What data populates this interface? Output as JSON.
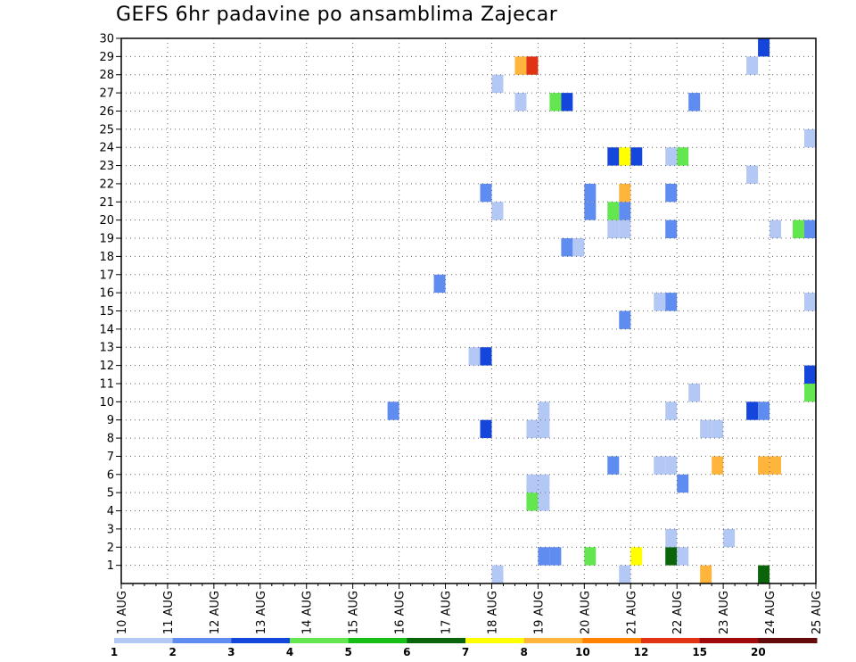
{
  "chart_data": {
    "type": "heatmap",
    "title": "GEFS 6hr padavine po ansamblima Zajecar",
    "x_tick_labels": [
      "10 AUG",
      "11 AUG",
      "12 AUG",
      "13 AUG",
      "14 AUG",
      "15 AUG",
      "16 AUG",
      "17 AUG",
      "18 AUG",
      "19 AUG",
      "20 AUG",
      "21 AUG",
      "22 AUG",
      "23 AUG",
      "24 AUG",
      "25 AUG"
    ],
    "y_tick_labels": [
      "1",
      "2",
      "3",
      "4",
      "5",
      "6",
      "7",
      "8",
      "9",
      "10",
      "11",
      "12",
      "13",
      "14",
      "15",
      "16",
      "17",
      "18",
      "19",
      "20",
      "21",
      "22",
      "23",
      "24",
      "25",
      "26",
      "27",
      "28",
      "29",
      "30"
    ],
    "xlim": [
      "10 AUG",
      "25 AUG"
    ],
    "ylim": [
      0,
      30
    ],
    "grid": true,
    "colorbar": {
      "colors": [
        "#b4c8f5",
        "#5f8cf0",
        "#1446dc",
        "#64e650",
        "#14be14",
        "#0a640a",
        "#ffff00",
        "#ffb43c",
        "#ff8200",
        "#e13214",
        "#a00a0a",
        "#640a0a"
      ],
      "labels": [
        "1",
        "2",
        "3",
        "4",
        "5",
        "6",
        "7",
        "8",
        "10",
        "12",
        "15",
        "20"
      ]
    },
    "cells": [
      {
        "day": "18 AUG",
        "hour": 0,
        "member": 0,
        "color": "#b4c8f5"
      },
      {
        "day": "19 AUG",
        "hour": 0,
        "member": 1,
        "color": "#5f8cf0"
      },
      {
        "day": "19 AUG",
        "hour": 6,
        "member": 1,
        "color": "#5f8cf0"
      },
      {
        "day": "20 AUG",
        "hour": 0,
        "member": 1,
        "color": "#64e650"
      },
      {
        "day": "20 AUG",
        "hour": 18,
        "member": 0,
        "color": "#b4c8f5"
      },
      {
        "day": "21 AUG",
        "hour": 0,
        "member": 1,
        "color": "#ffff00"
      },
      {
        "day": "21 AUG",
        "hour": 18,
        "member": 1,
        "color": "#0a640a"
      },
      {
        "day": "22 AUG",
        "hour": 0,
        "member": 1,
        "color": "#b4c8f5"
      },
      {
        "day": "22 AUG",
        "hour": 12,
        "member": 0,
        "color": "#ffb43c"
      },
      {
        "day": "23 AUG",
        "hour": 18,
        "member": 0,
        "color": "#0a640a"
      },
      {
        "day": "21 AUG",
        "hour": 18,
        "member": 2,
        "color": "#b4c8f5"
      },
      {
        "day": "23 AUG",
        "hour": 0,
        "member": 2,
        "color": "#b4c8f5"
      },
      {
        "day": "18 AUG",
        "hour": 18,
        "member": 4,
        "color": "#64e650"
      },
      {
        "day": "19 AUG",
        "hour": 0,
        "member": 4,
        "color": "#b4c8f5"
      },
      {
        "day": "18 AUG",
        "hour": 18,
        "member": 5,
        "color": "#b4c8f5"
      },
      {
        "day": "19 AUG",
        "hour": 0,
        "member": 5,
        "color": "#b4c8f5"
      },
      {
        "day": "22 AUG",
        "hour": 0,
        "member": 5,
        "color": "#5f8cf0"
      },
      {
        "day": "20 AUG",
        "hour": 12,
        "member": 6,
        "color": "#5f8cf0"
      },
      {
        "day": "21 AUG",
        "hour": 12,
        "member": 6,
        "color": "#b4c8f5"
      },
      {
        "day": "21 AUG",
        "hour": 18,
        "member": 6,
        "color": "#b4c8f5"
      },
      {
        "day": "22 AUG",
        "hour": 18,
        "member": 6,
        "color": "#ffb43c"
      },
      {
        "day": "23 AUG",
        "hour": 18,
        "member": 6,
        "color": "#ffb43c"
      },
      {
        "day": "24 AUG",
        "hour": 0,
        "member": 6,
        "color": "#ffb43c"
      },
      {
        "day": "17 AUG",
        "hour": 18,
        "member": 8,
        "color": "#1446dc"
      },
      {
        "day": "18 AUG",
        "hour": 18,
        "member": 8,
        "color": "#b4c8f5"
      },
      {
        "day": "19 AUG",
        "hour": 0,
        "member": 8,
        "color": "#b4c8f5"
      },
      {
        "day": "22 AUG",
        "hour": 12,
        "member": 8,
        "color": "#b4c8f5"
      },
      {
        "day": "22 AUG",
        "hour": 18,
        "member": 8,
        "color": "#b4c8f5"
      },
      {
        "day": "15 AUG",
        "hour": 18,
        "member": 9,
        "color": "#5f8cf0"
      },
      {
        "day": "19 AUG",
        "hour": 0,
        "member": 9,
        "color": "#b4c8f5"
      },
      {
        "day": "21 AUG",
        "hour": 18,
        "member": 9,
        "color": "#b4c8f5"
      },
      {
        "day": "23 AUG",
        "hour": 12,
        "member": 9,
        "color": "#1446dc"
      },
      {
        "day": "23 AUG",
        "hour": 18,
        "member": 9,
        "color": "#5f8cf0"
      },
      {
        "day": "22 AUG",
        "hour": 6,
        "member": 10,
        "color": "#b4c8f5"
      },
      {
        "day": "24 AUG",
        "hour": 18,
        "member": 10,
        "color": "#64e650"
      },
      {
        "day": "24 AUG",
        "hour": 18,
        "member": 11,
        "color": "#1446dc"
      },
      {
        "day": "17 AUG",
        "hour": 12,
        "member": 12,
        "color": "#b4c8f5"
      },
      {
        "day": "17 AUG",
        "hour": 18,
        "member": 12,
        "color": "#1446dc"
      },
      {
        "day": "20 AUG",
        "hour": 18,
        "member": 14,
        "color": "#5f8cf0"
      },
      {
        "day": "21 AUG",
        "hour": 12,
        "member": 15,
        "color": "#b4c8f5"
      },
      {
        "day": "21 AUG",
        "hour": 18,
        "member": 15,
        "color": "#5f8cf0"
      },
      {
        "day": "24 AUG",
        "hour": 18,
        "member": 15,
        "color": "#b4c8f5"
      },
      {
        "day": "16 AUG",
        "hour": 18,
        "member": 16,
        "color": "#5f8cf0"
      },
      {
        "day": "19 AUG",
        "hour": 12,
        "member": 18,
        "color": "#5f8cf0"
      },
      {
        "day": "19 AUG",
        "hour": 18,
        "member": 18,
        "color": "#b4c8f5"
      },
      {
        "day": "20 AUG",
        "hour": 12,
        "member": 19,
        "color": "#b4c8f5"
      },
      {
        "day": "20 AUG",
        "hour": 18,
        "member": 19,
        "color": "#b4c8f5"
      },
      {
        "day": "21 AUG",
        "hour": 18,
        "member": 19,
        "color": "#5f8cf0"
      },
      {
        "day": "24 AUG",
        "hour": 0,
        "member": 19,
        "color": "#b4c8f5"
      },
      {
        "day": "24 AUG",
        "hour": 12,
        "member": 19,
        "color": "#64e650"
      },
      {
        "day": "24 AUG",
        "hour": 18,
        "member": 19,
        "color": "#5f8cf0"
      },
      {
        "day": "18 AUG",
        "hour": 0,
        "member": 20,
        "color": "#b4c8f5"
      },
      {
        "day": "20 AUG",
        "hour": 0,
        "member": 20,
        "color": "#5f8cf0"
      },
      {
        "day": "20 AUG",
        "hour": 12,
        "member": 20,
        "color": "#64e650"
      },
      {
        "day": "20 AUG",
        "hour": 18,
        "member": 20,
        "color": "#5f8cf0"
      },
      {
        "day": "17 AUG",
        "hour": 18,
        "member": 21,
        "color": "#5f8cf0"
      },
      {
        "day": "20 AUG",
        "hour": 0,
        "member": 21,
        "color": "#5f8cf0"
      },
      {
        "day": "20 AUG",
        "hour": 18,
        "member": 21,
        "color": "#ffb43c"
      },
      {
        "day": "21 AUG",
        "hour": 18,
        "member": 21,
        "color": "#5f8cf0"
      },
      {
        "day": "23 AUG",
        "hour": 12,
        "member": 22,
        "color": "#b4c8f5"
      },
      {
        "day": "20 AUG",
        "hour": 12,
        "member": 23,
        "color": "#1446dc"
      },
      {
        "day": "20 AUG",
        "hour": 18,
        "member": 23,
        "color": "#ffff00"
      },
      {
        "day": "21 AUG",
        "hour": 0,
        "member": 23,
        "color": "#1446dc"
      },
      {
        "day": "21 AUG",
        "hour": 18,
        "member": 23,
        "color": "#b4c8f5"
      },
      {
        "day": "22 AUG",
        "hour": 0,
        "member": 23,
        "color": "#64e650"
      },
      {
        "day": "24 AUG",
        "hour": 18,
        "member": 24,
        "color": "#b4c8f5"
      },
      {
        "day": "25 AUG",
        "hour": 0,
        "member": 25,
        "color": "#5f8cf0"
      },
      {
        "day": "18 AUG",
        "hour": 12,
        "member": 26,
        "color": "#b4c8f5"
      },
      {
        "day": "19 AUG",
        "hour": 6,
        "member": 26,
        "color": "#64e650"
      },
      {
        "day": "19 AUG",
        "hour": 12,
        "member": 26,
        "color": "#1446dc"
      },
      {
        "day": "22 AUG",
        "hour": 6,
        "member": 26,
        "color": "#5f8cf0"
      },
      {
        "day": "18 AUG",
        "hour": 0,
        "member": 27,
        "color": "#b4c8f5"
      },
      {
        "day": "18 AUG",
        "hour": 12,
        "member": 28,
        "color": "#ffb43c"
      },
      {
        "day": "18 AUG",
        "hour": 18,
        "member": 28,
        "color": "#e13214"
      },
      {
        "day": "23 AUG",
        "hour": 12,
        "member": 28,
        "color": "#b4c8f5"
      },
      {
        "day": "23 AUG",
        "hour": 18,
        "member": 29,
        "color": "#1446dc"
      }
    ]
  }
}
